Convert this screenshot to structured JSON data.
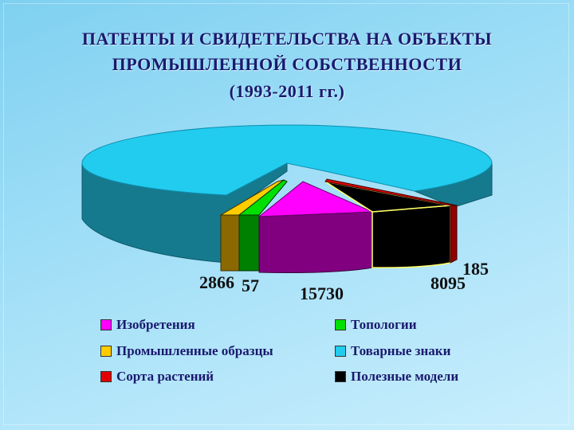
{
  "title_lines": [
    "ПАТЕНТЫ И СВИДЕТЕЛЬСТВА НА ОБЪЕКТЫ",
    "ПРОМЫШЛЕННОЙ СОБСТВЕННОСТИ",
    "(1993-2011 гг.)"
  ],
  "chart_data": {
    "type": "pie",
    "title": "ПАТЕНТЫ И СВИДЕТЕЛЬСТВА НА ОБЪЕКТЫ ПРОМЫШЛЕННОЙ СОБСТВЕННОСТИ (1993-2011 гг.)",
    "legend_placement": "bottom",
    "slices": [
      {
        "label": "Изобретения",
        "value": 15730,
        "color": "#ff00ff",
        "side": "#800080"
      },
      {
        "label": "Полезные модели",
        "value": 8095,
        "color": "#000000",
        "side": "#000000"
      },
      {
        "label": "Сорта растений",
        "value": 185,
        "color": "#e00000",
        "side": "#900000"
      },
      {
        "label": "Товарные знаки",
        "value": null,
        "color": "#22ccee",
        "side": "#167a8e"
      },
      {
        "label": "Промышленные образцы",
        "value": 2866,
        "color": "#ffcc00",
        "side": "#8a6a00"
      },
      {
        "label": "Топологии",
        "value": 57,
        "color": "#00e000",
        "side": "#008000"
      }
    ],
    "data_labels": {
      "industrial_designs": "2866",
      "topologies": "57",
      "inventions": "15730",
      "plant_varieties": "185",
      "utility_models": "8095"
    }
  },
  "legend": [
    {
      "label": "Изобретения",
      "color": "#ff00ff"
    },
    {
      "label": "Топологии",
      "color": "#00e000"
    },
    {
      "label": "Промышленные образцы",
      "color": "#ffcc00"
    },
    {
      "label": "Товарные знаки",
      "color": "#22ccee"
    },
    {
      "label": "Сорта растений",
      "color": "#e00000"
    },
    {
      "label": "Полезные модели",
      "color": "#000000"
    }
  ]
}
